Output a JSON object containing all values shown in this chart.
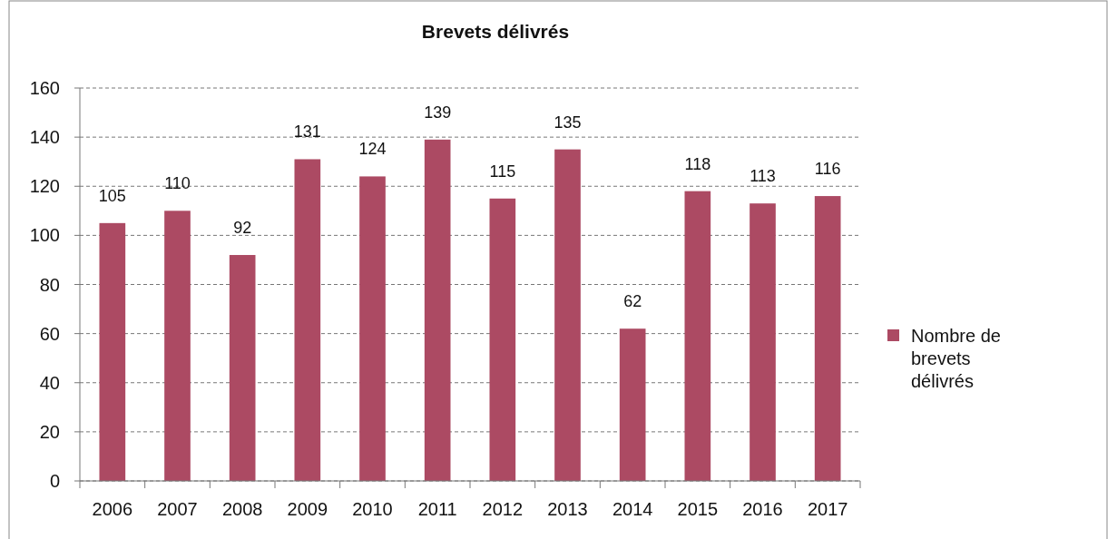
{
  "chart_data": {
    "type": "bar",
    "title": "Brevets délivrés",
    "categories": [
      "2006",
      "2007",
      "2008",
      "2009",
      "2010",
      "2011",
      "2012",
      "2013",
      "2014",
      "2015",
      "2016",
      "2017"
    ],
    "series": [
      {
        "name": "Nombre de brevets délivrés",
        "color": "#ac4a63",
        "values": [
          105,
          110,
          92,
          131,
          124,
          139,
          115,
          135,
          62,
          118,
          113,
          116
        ]
      }
    ],
    "ylim": [
      0,
      160
    ],
    "yticks": [
      0,
      20,
      40,
      60,
      80,
      100,
      120,
      140,
      160
    ],
    "grid": "y",
    "legend": "right",
    "data_labels": true
  }
}
